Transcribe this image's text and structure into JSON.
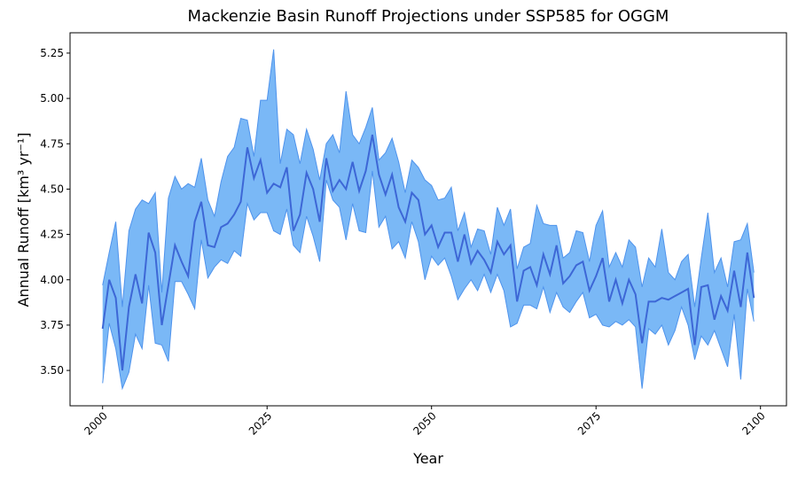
{
  "chart_data": {
    "type": "band-line",
    "title": "Mackenzie Basin Runoff Projections under SSP585 for OGGM",
    "x_label": "Year",
    "y_label": "Annual Runoff [km³ yr⁻¹]",
    "x": [
      2000,
      2001,
      2002,
      2003,
      2004,
      2005,
      2006,
      2007,
      2008,
      2009,
      2010,
      2011,
      2012,
      2013,
      2014,
      2015,
      2016,
      2017,
      2018,
      2019,
      2020,
      2021,
      2022,
      2023,
      2024,
      2025,
      2026,
      2027,
      2028,
      2029,
      2030,
      2031,
      2032,
      2033,
      2034,
      2035,
      2036,
      2037,
      2038,
      2039,
      2040,
      2041,
      2042,
      2043,
      2044,
      2045,
      2046,
      2047,
      2048,
      2049,
      2050,
      2051,
      2052,
      2053,
      2054,
      2055,
      2056,
      2057,
      2058,
      2059,
      2060,
      2061,
      2062,
      2063,
      2064,
      2065,
      2066,
      2067,
      2068,
      2069,
      2070,
      2071,
      2072,
      2073,
      2074,
      2075,
      2076,
      2077,
      2078,
      2079,
      2080,
      2081,
      2082,
      2083,
      2084,
      2085,
      2086,
      2087,
      2088,
      2089,
      2090,
      2091,
      2092,
      2093,
      2094,
      2095,
      2096,
      2097,
      2098,
      2099
    ],
    "values": [
      3.73,
      4.0,
      3.9,
      3.5,
      3.85,
      4.03,
      3.87,
      4.26,
      4.15,
      3.75,
      3.97,
      4.19,
      4.1,
      4.02,
      4.32,
      4.43,
      4.19,
      4.18,
      4.29,
      4.31,
      4.36,
      4.43,
      4.73,
      4.56,
      4.66,
      4.48,
      4.53,
      4.51,
      4.62,
      4.27,
      4.36,
      4.59,
      4.5,
      4.32,
      4.67,
      4.49,
      4.55,
      4.5,
      4.65,
      4.49,
      4.6,
      4.8,
      4.58,
      4.47,
      4.58,
      4.4,
      4.32,
      4.48,
      4.44,
      4.25,
      4.3,
      4.18,
      4.26,
      4.26,
      4.1,
      4.25,
      4.09,
      4.16,
      4.11,
      4.04,
      4.21,
      4.14,
      4.19,
      3.88,
      4.05,
      4.07,
      3.97,
      4.14,
      4.03,
      4.19,
      3.98,
      4.02,
      4.08,
      4.1,
      3.94,
      4.02,
      4.12,
      3.88,
      4.0,
      3.87,
      4.0,
      3.92,
      3.65,
      3.88,
      3.88,
      3.9,
      3.89,
      3.91,
      3.93,
      3.95,
      3.64,
      3.96,
      3.97,
      3.78,
      3.91,
      3.83,
      4.05,
      3.85,
      4.15,
      3.9
    ],
    "band": {
      "upper": [
        3.97,
        4.15,
        4.32,
        3.85,
        4.27,
        4.39,
        4.44,
        4.42,
        4.48,
        3.93,
        4.45,
        4.57,
        4.5,
        4.53,
        4.51,
        4.67,
        4.44,
        4.35,
        4.54,
        4.68,
        4.73,
        4.89,
        4.88,
        4.68,
        4.99,
        4.99,
        5.27,
        4.64,
        4.83,
        4.8,
        4.64,
        4.83,
        4.72,
        4.55,
        4.75,
        4.8,
        4.7,
        5.04,
        4.8,
        4.75,
        4.84,
        4.95,
        4.66,
        4.7,
        4.78,
        4.65,
        4.48,
        4.66,
        4.62,
        4.55,
        4.52,
        4.44,
        4.45,
        4.51,
        4.27,
        4.37,
        4.18,
        4.28,
        4.27,
        4.14,
        4.4,
        4.3,
        4.39,
        4.06,
        4.18,
        4.2,
        4.41,
        4.31,
        4.3,
        4.3,
        4.12,
        4.15,
        4.27,
        4.26,
        4.1,
        4.3,
        4.38,
        4.07,
        4.15,
        4.07,
        4.22,
        4.18,
        3.96,
        4.12,
        4.07,
        4.28,
        4.04,
        4.0,
        4.1,
        4.14,
        3.85,
        4.12,
        4.37,
        4.04,
        4.12,
        3.96,
        4.21,
        4.22,
        4.31,
        4.04
      ],
      "lower": [
        3.43,
        3.76,
        3.62,
        3.4,
        3.49,
        3.7,
        3.62,
        3.97,
        3.65,
        3.64,
        3.55,
        3.99,
        3.99,
        3.92,
        3.84,
        4.22,
        4.01,
        4.07,
        4.11,
        4.09,
        4.16,
        4.13,
        4.42,
        4.33,
        4.37,
        4.37,
        4.27,
        4.25,
        4.39,
        4.19,
        4.15,
        4.35,
        4.24,
        4.1,
        4.55,
        4.44,
        4.4,
        4.22,
        4.42,
        4.27,
        4.26,
        4.6,
        4.29,
        4.35,
        4.17,
        4.21,
        4.12,
        4.32,
        4.21,
        4.0,
        4.13,
        4.08,
        4.12,
        4.02,
        3.89,
        3.95,
        4.0,
        3.94,
        4.03,
        3.93,
        4.03,
        3.94,
        3.74,
        3.76,
        3.86,
        3.86,
        3.84,
        3.96,
        3.82,
        3.93,
        3.85,
        3.82,
        3.88,
        3.93,
        3.79,
        3.81,
        3.75,
        3.74,
        3.77,
        3.75,
        3.78,
        3.74,
        3.4,
        3.73,
        3.7,
        3.75,
        3.64,
        3.72,
        3.85,
        3.75,
        3.56,
        3.69,
        3.64,
        3.72,
        3.62,
        3.52,
        3.81,
        3.45,
        3.95,
        3.77
      ]
    },
    "line_color": "#3d67d6",
    "fill_color": "#7ab8f6",
    "edge_color": "#4f93ec",
    "xlim": [
      1995.05,
      2103.95
    ],
    "xticks": [
      2000,
      2025,
      2050,
      2075,
      2100
    ],
    "ylim": [
      3.305,
      5.362
    ],
    "yticks": [
      {
        "value": 3.5,
        "label": "3.50"
      },
      3.75,
      {
        "value": 4,
        "label": "4.00"
      },
      4.25,
      {
        "value": 4.5,
        "label": "4.50"
      },
      4.75,
      {
        "value": 5,
        "label": "5.00"
      },
      5.25
    ],
    "grid": false
  }
}
